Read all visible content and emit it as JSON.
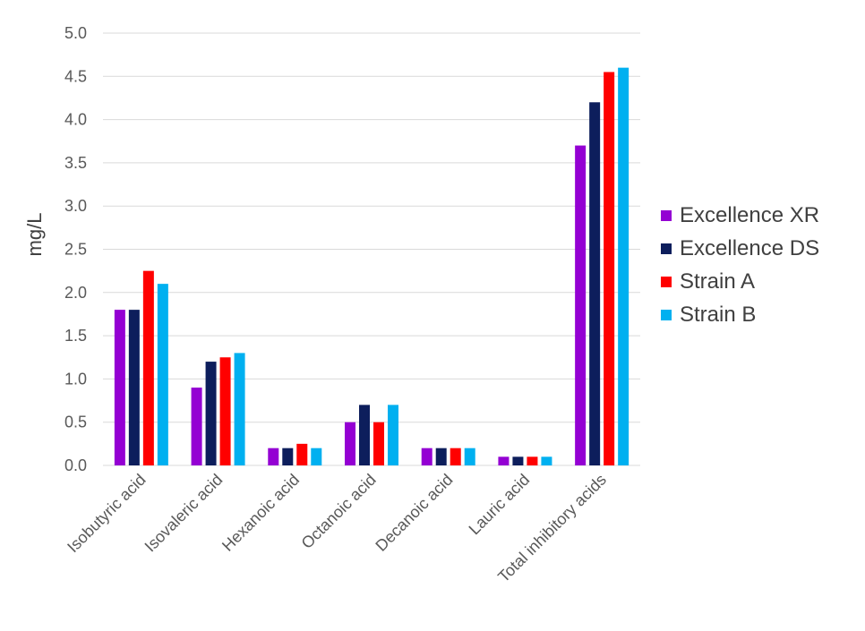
{
  "chart_data": {
    "type": "bar",
    "ylabel": "mg/L",
    "xlabel": "",
    "ylim": [
      0,
      5.0
    ],
    "ytick_step": 0.5,
    "ytick_labels": [
      "0.0",
      "0.5",
      "1.0",
      "1.5",
      "2.0",
      "2.5",
      "3.0",
      "3.5",
      "4.0",
      "4.5",
      "5.0"
    ],
    "grid": true,
    "legend_position": "right",
    "categories": [
      "Isobutyric acid",
      "Isovaleric acid",
      "Hexanoic acid",
      "Octanoic acid",
      "Decanoic acid",
      "Lauric acid",
      "Total inhibitory acids"
    ],
    "series": [
      {
        "name": "Excellence XR",
        "color": "#9400D3",
        "values": [
          1.8,
          0.9,
          0.2,
          0.5,
          0.2,
          0.1,
          3.7
        ]
      },
      {
        "name": "Excellence DS",
        "color": "#0D1E5C",
        "values": [
          1.8,
          1.2,
          0.2,
          0.7,
          0.2,
          0.1,
          4.2
        ]
      },
      {
        "name": "Strain A",
        "color": "#FF0000",
        "values": [
          2.25,
          1.25,
          0.25,
          0.5,
          0.2,
          0.1,
          4.55
        ]
      },
      {
        "name": "Strain B",
        "color": "#00B0F0",
        "values": [
          2.1,
          1.3,
          0.2,
          0.7,
          0.2,
          0.1,
          4.6
        ]
      }
    ]
  }
}
